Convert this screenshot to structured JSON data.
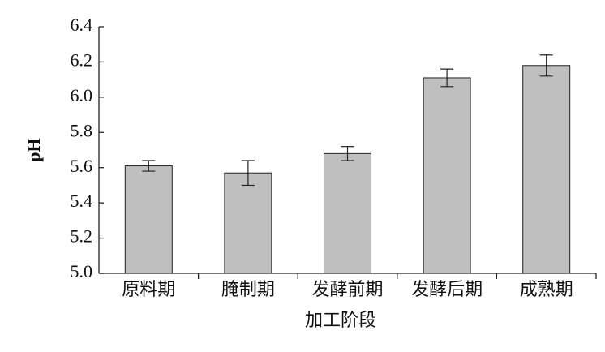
{
  "chart_data": {
    "type": "bar",
    "x_label": "加工阶段",
    "y_label": "pH",
    "categories": [
      "原料期",
      "腌制期",
      "发酵前期",
      "发酵后期",
      "成熟期"
    ],
    "values": [
      5.61,
      5.57,
      5.68,
      6.11,
      6.18
    ],
    "errors": [
      0.03,
      0.07,
      0.04,
      0.05,
      0.06
    ],
    "color": "#bfbfbf",
    "ylim": [
      5.0,
      6.4
    ],
    "yticks": [
      {
        "value": 5.0,
        "label": "5.0"
      },
      5.2,
      5.4,
      5.6,
      5.8,
      {
        "value": 6.0,
        "label": "6.0"
      },
      6.2,
      6.4
    ]
  }
}
